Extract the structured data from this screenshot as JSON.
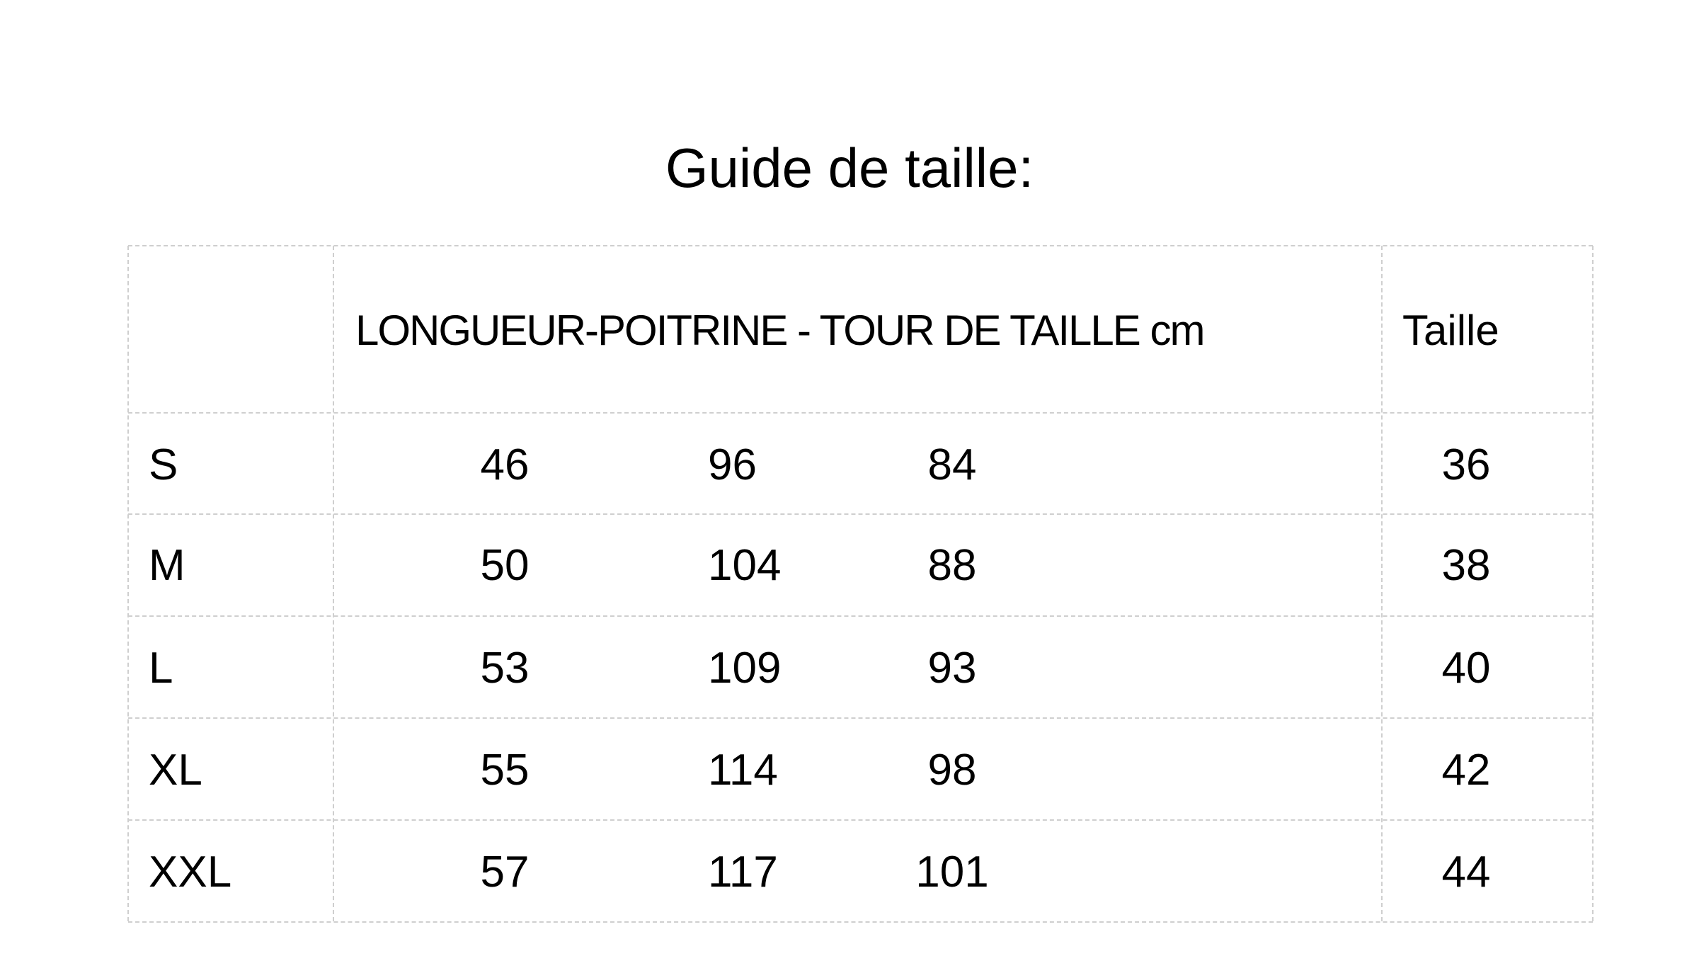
{
  "title": "Guide de taille:",
  "table": {
    "header": {
      "size": "",
      "measurements": "LONGUEUR-POITRINE - TOUR DE TAILLE cm",
      "taille": "Taille"
    },
    "rows": [
      {
        "size": "S",
        "longueur": "46",
        "poitrine": "96",
        "tour_de_taille": "84",
        "taille": "36"
      },
      {
        "size": "M",
        "longueur": "50",
        "poitrine": "104",
        "tour_de_taille": "88",
        "taille": "38"
      },
      {
        "size": "L",
        "longueur": "53",
        "poitrine": "109",
        "tour_de_taille": "93",
        "taille": "40"
      },
      {
        "size": "XL",
        "longueur": "55",
        "poitrine": "114",
        "tour_de_taille": "98",
        "taille": "42"
      },
      {
        "size": "XXL",
        "longueur": "57",
        "poitrine": "117",
        "tour_de_taille": "101",
        "taille": "44"
      }
    ]
  }
}
